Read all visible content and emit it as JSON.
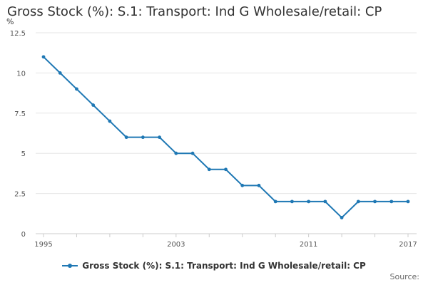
{
  "chart_data": {
    "type": "line",
    "title": "Gross Stock (%): S.1: Transport: Ind G Wholesale/retail: CP",
    "ylabel": "%",
    "xlabel": "",
    "x": [
      1995,
      1996,
      1997,
      1998,
      1999,
      2000,
      2001,
      2002,
      2003,
      2004,
      2005,
      2006,
      2007,
      2008,
      2009,
      2010,
      2011,
      2012,
      2013,
      2014,
      2015,
      2016,
      2017
    ],
    "series": [
      {
        "name": "Gross Stock (%): S.1: Transport: Ind G Wholesale/retail: CP",
        "values": [
          11,
          10,
          9,
          8,
          7,
          6,
          6,
          6,
          5,
          5,
          4,
          4,
          3,
          3,
          2,
          2,
          2,
          2,
          1,
          2,
          2,
          2,
          2
        ]
      }
    ],
    "ylim": [
      0,
      12.5
    ],
    "yticks": [
      0,
      2.5,
      5,
      7.5,
      10,
      12.5
    ],
    "ytick_labels": [
      "0",
      "2.5",
      "5",
      "7.5",
      "10",
      "12.5"
    ],
    "xlim": [
      1995,
      2017
    ],
    "xticks_labeled": [
      1995,
      2003,
      2011,
      2017
    ],
    "xtick_labels": [
      "1995",
      "2003",
      "2011",
      "2017"
    ],
    "grid": true,
    "legend_position": "bottom"
  },
  "colors": {
    "series": "#1f78b4",
    "grid": "#e6e6e6",
    "axis": "#cccccc"
  },
  "source_label": "Source:"
}
